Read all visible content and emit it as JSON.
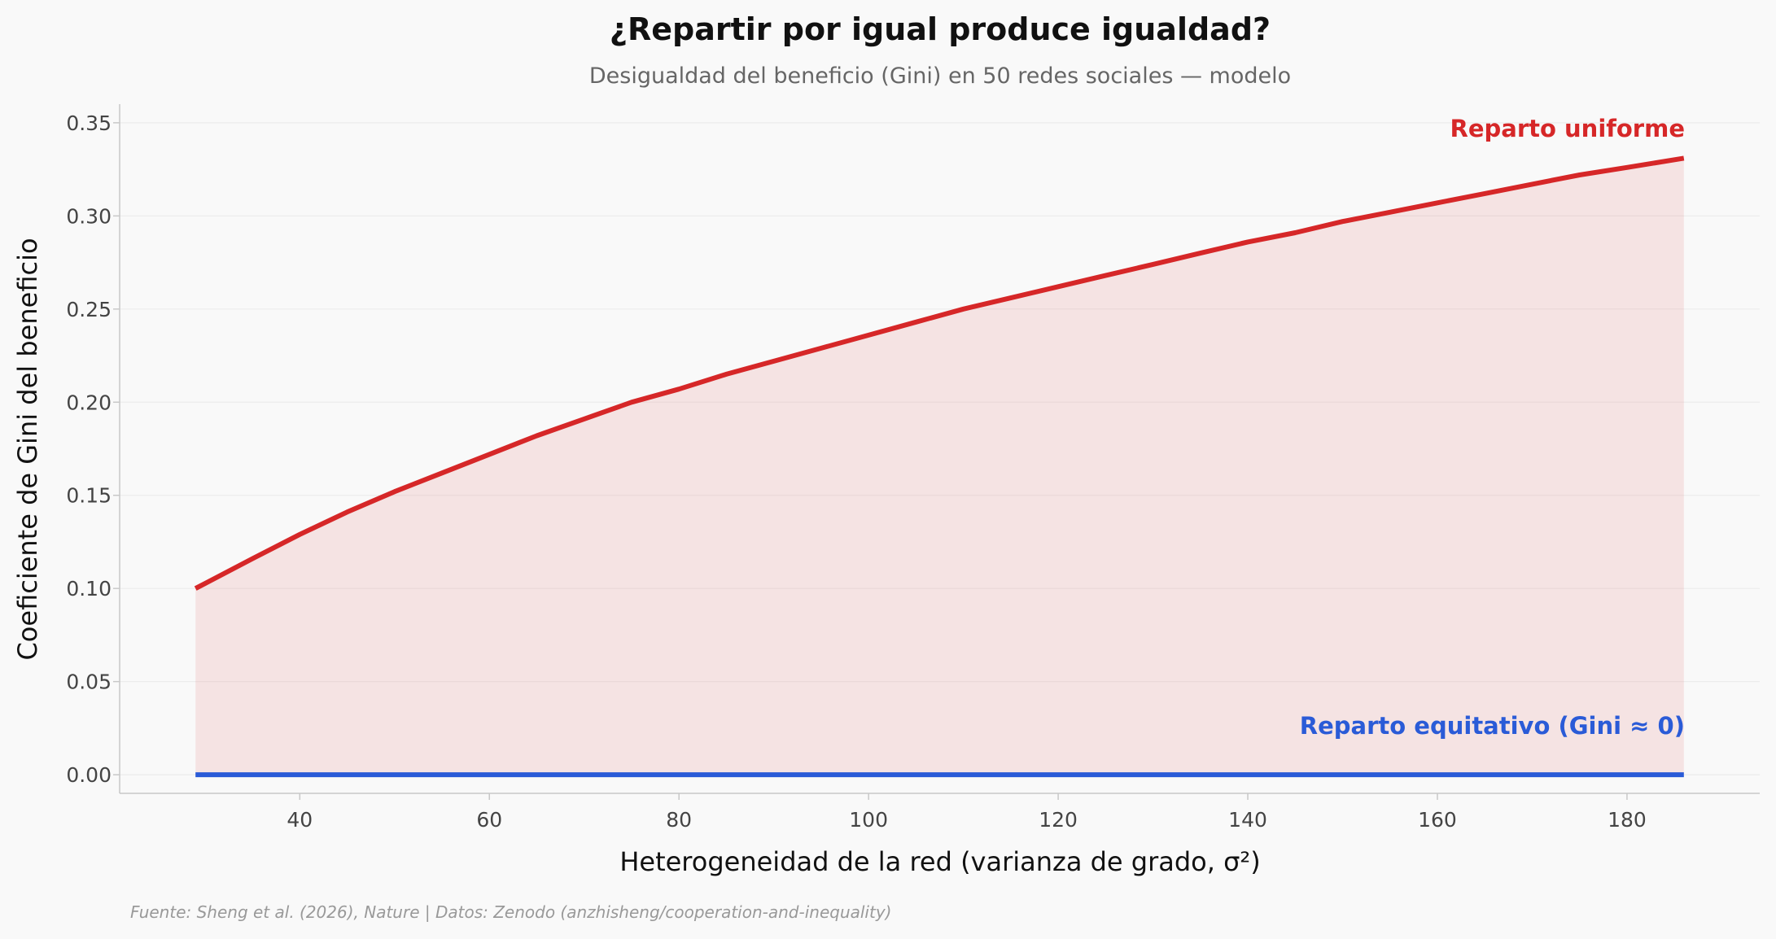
{
  "chart_data": {
    "type": "area",
    "title": "¿Repartir por igual produce igualdad?",
    "subtitle": "Desigualdad del beneficio (Gini) en 50 redes sociales — modelo",
    "xlabel": "Heterogeneidad de la red  (varianza de grado, σ²)",
    "ylabel": "Coeficiente de Gini del beneficio",
    "xlim": [
      21,
      194
    ],
    "ylim": [
      -0.01,
      0.36
    ],
    "x_ticks": [
      40,
      60,
      80,
      100,
      120,
      140,
      160,
      180
    ],
    "x_tick_labels": [
      "40",
      "60",
      "80",
      "100",
      "120",
      "140",
      "160",
      "180"
    ],
    "y_ticks": [
      0.0,
      0.05,
      0.1,
      0.15,
      0.2,
      0.25,
      0.3,
      0.35
    ],
    "y_tick_labels": [
      "0.00",
      "0.05",
      "0.10",
      "0.15",
      "0.20",
      "0.25",
      "0.30",
      "0.35"
    ],
    "grid": true,
    "series": [
      {
        "name": "Reparto uniforme",
        "color": "#d62728",
        "fill": true,
        "x": [
          29,
          35,
          40,
          45,
          50,
          55,
          60,
          65,
          70,
          75,
          80,
          85,
          90,
          95,
          100,
          105,
          110,
          115,
          120,
          125,
          130,
          135,
          140,
          145,
          150,
          155,
          160,
          165,
          170,
          175,
          180,
          186
        ],
        "y": [
          0.1,
          0.116,
          0.129,
          0.141,
          0.152,
          0.162,
          0.172,
          0.182,
          0.191,
          0.2,
          0.207,
          0.215,
          0.222,
          0.229,
          0.236,
          0.243,
          0.25,
          0.256,
          0.262,
          0.268,
          0.274,
          0.28,
          0.286,
          0.291,
          0.297,
          0.302,
          0.307,
          0.312,
          0.317,
          0.322,
          0.326,
          0.331
        ]
      },
      {
        "name": "Reparto equitativo  (Gini ≈ 0)",
        "color": "#2a5bd7",
        "fill": false,
        "x": [
          29,
          186
        ],
        "y": [
          0.0,
          0.0
        ]
      }
    ],
    "source": "Fuente: Sheng et al. (2026), Nature | Datos: Zenodo (anzhisheng/cooperation-and-inequality)"
  }
}
